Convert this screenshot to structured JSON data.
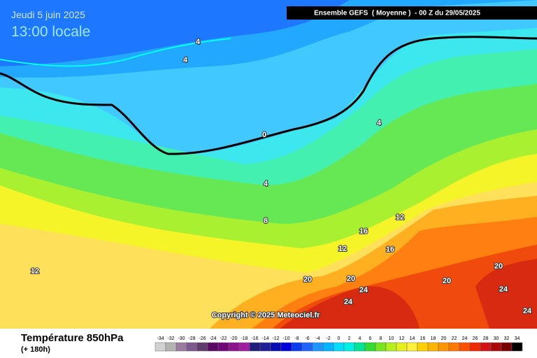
{
  "header": {
    "date": "Jeudi 5 juin 2025",
    "time": "13:00 locale",
    "run": "Ensemble GEFS  ( Moyenne )  - 00 Z du 29/05/2025"
  },
  "map": {
    "contour_labels": [
      4,
      4,
      0,
      4,
      4,
      8,
      12,
      12,
      16,
      16,
      12,
      20,
      20,
      24,
      24,
      20,
      20,
      24,
      24
    ],
    "copyright": "Copyright © 2025 Meteociel.fr"
  },
  "footer": {
    "title": "Température 850hPa",
    "subtitle": "(+ 180h)"
  },
  "legend": {
    "ticks": [
      -34,
      -32,
      -30,
      -28,
      -26,
      -24,
      -22,
      -20,
      -18,
      -16,
      -14,
      -12,
      -10,
      -8,
      -6,
      -4,
      -2,
      0,
      2,
      4,
      6,
      8,
      10,
      12,
      14,
      16,
      18,
      20,
      22,
      24,
      26,
      28,
      30,
      32,
      34
    ],
    "colors": [
      "#d2d2d2",
      "#b4b4b4",
      "#9a7ba0",
      "#7f5a8c",
      "#603c6c",
      "#5a0a64",
      "#6e0a78",
      "#8c148c",
      "#a01ea0",
      "#1e1e78",
      "#1e1e96",
      "#0a0ab4",
      "#0000dc",
      "#0a3cf0",
      "#1e64ff",
      "#1e96ff",
      "#00b4ff",
      "#00dcff",
      "#00f0e6",
      "#00e696",
      "#32dc32",
      "#78e61e",
      "#b4f01e",
      "#e6f01e",
      "#fff03c",
      "#ffd200",
      "#ffb400",
      "#ff9600",
      "#ff7800",
      "#ff5000",
      "#f02800",
      "#d21414",
      "#aa0a0a",
      "#780000",
      "#000000"
    ]
  }
}
